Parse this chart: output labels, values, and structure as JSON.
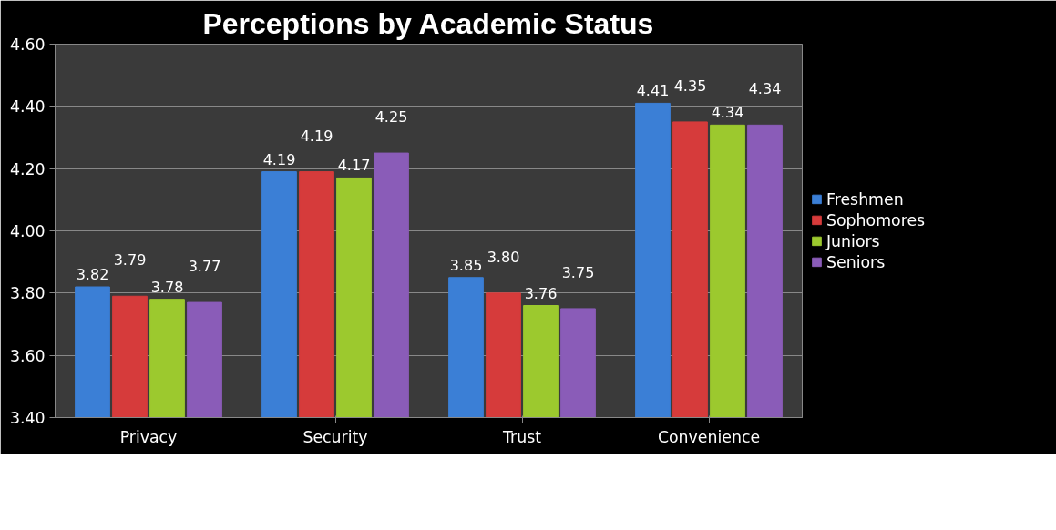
{
  "chart_data": {
    "type": "bar",
    "title": "Perceptions by Academic Status",
    "categories": [
      "Privacy",
      "Security",
      "Trust",
      "Convenience"
    ],
    "series": [
      {
        "name": "Freshmen",
        "color": "#3b7fd6",
        "values": [
          3.82,
          4.19,
          3.85,
          4.41
        ],
        "value_labels": [
          "3.82",
          "4.19",
          "3.85",
          "4.41"
        ]
      },
      {
        "name": "Sophomores",
        "color": "#d63b3b",
        "values": [
          3.79,
          4.19,
          3.8,
          4.35
        ],
        "value_labels": [
          "3.79",
          "4.19",
          "3.80",
          "4.35"
        ]
      },
      {
        "name": "Juniors",
        "color": "#9cc92e",
        "values": [
          3.78,
          4.17,
          3.76,
          4.34
        ],
        "value_labels": [
          "3.78",
          "4.17",
          "3.76",
          "4.34"
        ]
      },
      {
        "name": "Seniors",
        "color": "#8a5cb8",
        "values": [
          3.77,
          4.25,
          3.75,
          4.34
        ],
        "value_labels": [
          "3.77",
          "4.25",
          "3.75",
          "4.34"
        ]
      }
    ],
    "ylim": [
      3.4,
      4.6
    ],
    "yticks": [
      {
        "value": 3.4,
        "label": "3.40"
      },
      {
        "value": 3.6,
        "label": "3.60"
      },
      {
        "value": 3.8,
        "label": "3.80"
      },
      {
        "value": 4.0,
        "label": "4.00"
      },
      {
        "value": 4.2,
        "label": "4.20"
      },
      {
        "value": 4.4,
        "label": "4.40"
      },
      {
        "value": 4.6,
        "label": "4.60"
      }
    ],
    "grid": "y",
    "legend": "right",
    "data_labels": true
  }
}
